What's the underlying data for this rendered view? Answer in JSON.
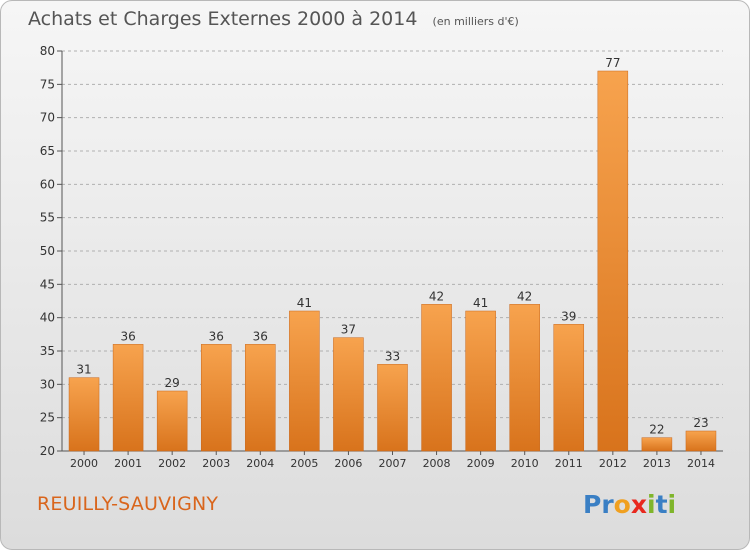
{
  "header": {
    "title": "Achats et Charges Externes 2000 à 2014",
    "unit": "(en milliers d'€)"
  },
  "footer": {
    "commune": "REUILLY-SAUVIGNY",
    "logo_letters": [
      {
        "ch": "P",
        "color": "#3a7fc4"
      },
      {
        "ch": "r",
        "color": "#3a7fc4"
      },
      {
        "ch": "o",
        "color": "#f0a020"
      },
      {
        "ch": "x",
        "color": "#e8281e"
      },
      {
        "ch": "i",
        "color": "#7fb52b"
      },
      {
        "ch": "t",
        "color": "#3a7fc4"
      },
      {
        "ch": "i",
        "color": "#7fb52b"
      }
    ]
  },
  "colors": {
    "bar_light": "#f7a34e",
    "bar_dark": "#d8731c",
    "grid": "#b0b0b0",
    "text": "#333333"
  },
  "chart_data": {
    "type": "bar",
    "title": "Achats et Charges Externes 2000 à 2014",
    "subtitle": "(en milliers d'€)",
    "categories": [
      "2000",
      "2001",
      "2002",
      "2003",
      "2004",
      "2005",
      "2006",
      "2007",
      "2008",
      "2009",
      "2010",
      "2011",
      "2012",
      "2013",
      "2014"
    ],
    "values": [
      31,
      36,
      29,
      36,
      36,
      41,
      37,
      33,
      42,
      41,
      42,
      39,
      77,
      22,
      23
    ],
    "ylim": [
      20,
      80
    ],
    "yticks": [
      20,
      25,
      30,
      35,
      40,
      45,
      50,
      55,
      60,
      65,
      70,
      75,
      80
    ],
    "grid": true,
    "grid_style": "dashed-horizontal",
    "data_labels": true
  }
}
